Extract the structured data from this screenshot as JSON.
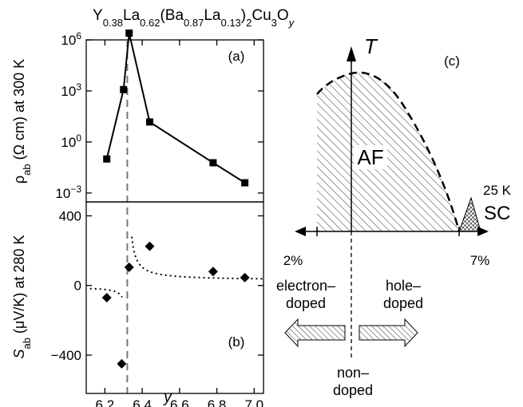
{
  "chart_data": [
    {
      "type": "scatter",
      "panel_label": "(a)",
      "title_parts": [
        "Y",
        "0.38",
        "La",
        "0.62",
        "(Ba",
        "0.87",
        "La",
        "0.13",
        ")",
        "2",
        "Cu",
        "3",
        "O",
        "y"
      ],
      "ylabel_parts": [
        "ρ",
        "ab",
        " (Ω cm) at 300 K"
      ],
      "yscale": "log",
      "ylim": [
        0.0003,
        1000000
      ],
      "xlim": [
        6.1,
        7.05
      ],
      "yticks": [
        0.001,
        1,
        1000,
        1000000
      ],
      "ytick_labels": [
        [
          "10",
          "−3"
        ],
        [
          "10",
          "0"
        ],
        [
          "10",
          "3"
        ],
        [
          "10",
          "6"
        ]
      ],
      "x": [
        6.21,
        6.3,
        6.33,
        6.44,
        6.78,
        6.95
      ],
      "y": [
        0.1,
        1200,
        2500000,
        15,
        0.06,
        0.004
      ]
    },
    {
      "type": "scatter",
      "panel_label": "(b)",
      "ylabel_parts": [
        "S",
        "ab",
        " (μV/K) at 280 K"
      ],
      "xlabel": "y",
      "ylim": [
        -620,
        480
      ],
      "xlim": [
        6.1,
        7.05
      ],
      "yticks": [
        -400,
        0,
        400
      ],
      "ytick_labels": [
        "−400",
        "0",
        "400"
      ],
      "xticks": [
        6.2,
        6.4,
        6.6,
        6.8,
        7.0
      ],
      "xtick_labels": [
        "6.2",
        "6.4",
        "6.6",
        "6.8",
        "7.0"
      ],
      "x": [
        6.21,
        6.29,
        6.33,
        6.44,
        6.78,
        6.95
      ],
      "y": [
        -70,
        -450,
        105,
        225,
        80,
        45
      ],
      "reference_line_x": 6.32
    },
    {
      "type": "diagram",
      "panel_label": "(c)",
      "axis_label": "T",
      "region_labels": {
        "af": "AF",
        "sc": "SC"
      },
      "sc_temperature": "25 K",
      "doping_ticks": {
        "left": "2%",
        "right": "7%"
      },
      "left_label": [
        "electron–",
        "doped"
      ],
      "right_label": [
        "hole–",
        "doped"
      ],
      "center_label": [
        "non–",
        "doped"
      ]
    }
  ]
}
